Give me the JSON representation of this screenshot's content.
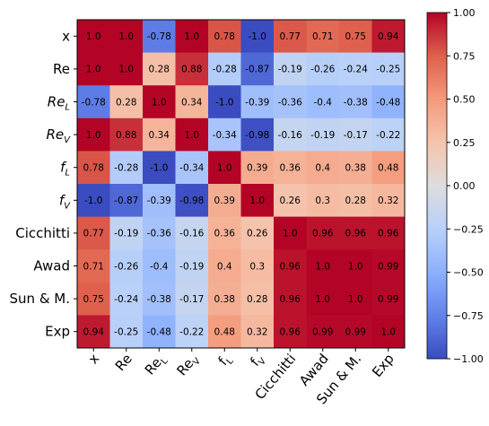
{
  "chart_data": {
    "type": "heatmap",
    "title": "",
    "xlabel": "",
    "ylabel": "",
    "row_labels": [
      {
        "base": "x",
        "sub": "",
        "italic": false
      },
      {
        "base": "Re",
        "sub": "",
        "italic": false
      },
      {
        "base": "Re",
        "sub": "L",
        "italic": true
      },
      {
        "base": "Re",
        "sub": "V",
        "italic": true
      },
      {
        "base": "f",
        "sub": "L",
        "italic": true
      },
      {
        "base": "f",
        "sub": "V",
        "italic": true
      },
      {
        "base": "Cicchitti",
        "sub": "",
        "italic": false
      },
      {
        "base": "Awad",
        "sub": "",
        "italic": false
      },
      {
        "base": "Sun & M.",
        "sub": "",
        "italic": false
      },
      {
        "base": "Exp",
        "sub": "",
        "italic": false
      }
    ],
    "col_labels": [
      {
        "base": "x",
        "sub": "",
        "italic": false
      },
      {
        "base": "Re",
        "sub": "",
        "italic": false
      },
      {
        "base": "Re",
        "sub": "L",
        "italic": false
      },
      {
        "base": "Re",
        "sub": "V",
        "italic": false
      },
      {
        "base": "f",
        "sub": "L",
        "italic": false
      },
      {
        "base": "f",
        "sub": "V",
        "italic": false
      },
      {
        "base": "Cicchitti",
        "sub": "",
        "italic": false
      },
      {
        "base": "Awad",
        "sub": "",
        "italic": false
      },
      {
        "base": "Sun & M.",
        "sub": "",
        "italic": false
      },
      {
        "base": "Exp",
        "sub": "",
        "italic": false
      }
    ],
    "values": [
      [
        1.0,
        1.0,
        -0.78,
        1.0,
        0.78,
        -1.0,
        0.77,
        0.71,
        0.75,
        0.94
      ],
      [
        1.0,
        1.0,
        0.28,
        0.88,
        -0.28,
        -0.87,
        -0.19,
        -0.26,
        -0.24,
        -0.25
      ],
      [
        -0.78,
        0.28,
        1.0,
        0.34,
        -1.0,
        -0.39,
        -0.36,
        -0.4,
        -0.38,
        -0.48
      ],
      [
        1.0,
        0.88,
        0.34,
        1.0,
        -0.34,
        -0.98,
        -0.16,
        -0.19,
        -0.17,
        -0.22
      ],
      [
        0.78,
        -0.28,
        -1.0,
        -0.34,
        1.0,
        0.39,
        0.36,
        0.4,
        0.38,
        0.48
      ],
      [
        -1.0,
        -0.87,
        -0.39,
        -0.98,
        0.39,
        1.0,
        0.26,
        0.3,
        0.28,
        0.32
      ],
      [
        0.77,
        -0.19,
        -0.36,
        -0.16,
        0.36,
        0.26,
        1.0,
        0.96,
        0.96,
        0.96
      ],
      [
        0.71,
        -0.26,
        -0.4,
        -0.19,
        0.4,
        0.3,
        0.96,
        1.0,
        1.0,
        0.99
      ],
      [
        0.75,
        -0.24,
        -0.38,
        -0.17,
        0.38,
        0.28,
        0.96,
        1.0,
        1.0,
        0.99
      ],
      [
        0.94,
        -0.25,
        -0.48,
        -0.22,
        0.48,
        0.32,
        0.96,
        0.99,
        0.99,
        1.0
      ]
    ],
    "value_labels": [
      [
        "1.0",
        "1.0",
        "-0.78",
        "1.0",
        "0.78",
        "-1.0",
        "0.77",
        "0.71",
        "0.75",
        "0.94"
      ],
      [
        "1.0",
        "1.0",
        "0.28",
        "0.88",
        "-0.28",
        "-0.87",
        "-0.19",
        "-0.26",
        "-0.24",
        "-0.25"
      ],
      [
        "-0.78",
        "0.28",
        "1.0",
        "0.34",
        "-1.0",
        "-0.39",
        "-0.36",
        "-0.4",
        "-0.38",
        "-0.48"
      ],
      [
        "1.0",
        "0.88",
        "0.34",
        "1.0",
        "-0.34",
        "-0.98",
        "-0.16",
        "-0.19",
        "-0.17",
        "-0.22"
      ],
      [
        "0.78",
        "-0.28",
        "-1.0",
        "-0.34",
        "1.0",
        "0.39",
        "0.36",
        "0.4",
        "0.38",
        "0.48"
      ],
      [
        "-1.0",
        "-0.87",
        "-0.39",
        "-0.98",
        "0.39",
        "1.0",
        "0.26",
        "0.3",
        "0.28",
        "0.32"
      ],
      [
        "0.77",
        "-0.19",
        "-0.36",
        "-0.16",
        "0.36",
        "0.26",
        "1.0",
        "0.96",
        "0.96",
        "0.96"
      ],
      [
        "0.71",
        "-0.26",
        "-0.4",
        "-0.19",
        "0.4",
        "0.3",
        "0.96",
        "1.0",
        "1.0",
        "0.99"
      ],
      [
        "0.75",
        "-0.24",
        "-0.38",
        "-0.17",
        "0.38",
        "0.28",
        "0.96",
        "1.0",
        "1.0",
        "0.99"
      ],
      [
        "0.94",
        "-0.25",
        "-0.48",
        "-0.22",
        "0.48",
        "0.32",
        "0.96",
        "0.99",
        "0.99",
        "1.0"
      ]
    ],
    "colormap": "coolwarm",
    "vmin": -1.0,
    "vmax": 1.0,
    "colorbar": {
      "ticks": [
        1.0,
        0.75,
        0.5,
        0.25,
        0.0,
        -0.25,
        -0.5,
        -0.75,
        -1.0
      ],
      "tick_labels": [
        "1.00",
        "0.75",
        "0.50",
        "0.25",
        "0.00",
        "−0.25",
        "−0.50",
        "−0.75",
        "−1.00"
      ],
      "placement": "right"
    },
    "col_label_rotation": "45-degree",
    "grid": false
  }
}
